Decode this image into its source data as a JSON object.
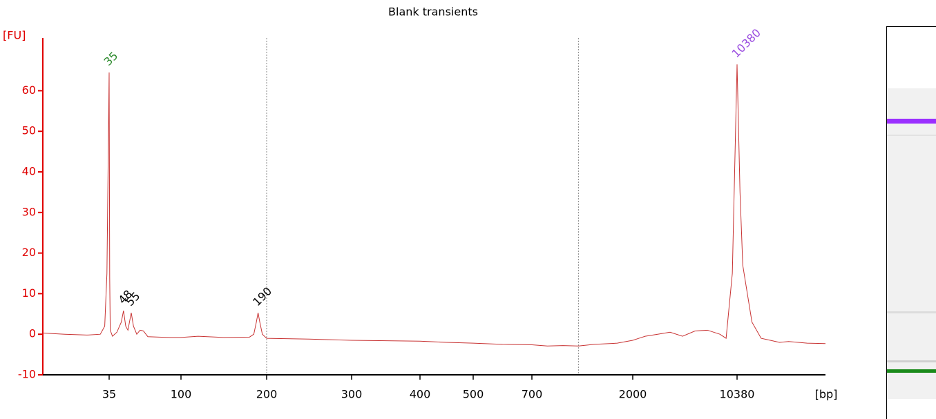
{
  "chart_data": {
    "type": "line",
    "title": "Blank transients",
    "y_label": "[FU]",
    "x_label": "[bp]",
    "axis_color": "#e00000",
    "xlim": [
      20,
      20000
    ],
    "xticks": [
      35,
      100,
      200,
      300,
      400,
      500,
      700,
      2000,
      10380
    ],
    "ylim": [
      -10,
      73
    ],
    "yticks": [
      -10,
      0,
      10,
      20,
      30,
      40,
      50,
      60
    ],
    "vlines": [
      200,
      1300
    ],
    "series": [
      {
        "color": "#c83232",
        "x": [
          20,
          25,
          30,
          33,
          34,
          34.5,
          35,
          35.5,
          36,
          38,
          42,
          46,
          48,
          50,
          52,
          55,
          57,
          60,
          63,
          66,
          70,
          80,
          90,
          100,
          120,
          150,
          180,
          185,
          188,
          190,
          192,
          195,
          200,
          250,
          300,
          350,
          400,
          450,
          500,
          600,
          700,
          900,
          1100,
          1300,
          1500,
          1800,
          2000,
          2500,
          3000,
          4000,
          5000,
          6000,
          7000,
          8000,
          9000,
          9500,
          10000,
          10380,
          10700,
          11000,
          11500,
          12000,
          13000,
          14000,
          15000,
          16000,
          18000,
          20000
        ],
        "values": [
          0.3,
          0,
          -0.2,
          0,
          2,
          15,
          64.5,
          14,
          1,
          -0.5,
          0.5,
          3,
          5.8,
          2,
          1,
          5.3,
          2,
          0,
          1,
          0.8,
          -0.6,
          -0.7,
          -0.8,
          -0.8,
          -0.5,
          -0.8,
          -0.7,
          0,
          3,
          5.3,
          3,
          0,
          -1,
          -1.2,
          -1.5,
          -1.6,
          -1.7,
          -2,
          -2.2,
          -2.5,
          -2.6,
          -2.9,
          -2.8,
          -2.9,
          -2.5,
          -2.2,
          -1.5,
          -1,
          -0.5,
          0,
          0.5,
          -0.5,
          0.8,
          1,
          0,
          -1,
          15,
          66.5,
          35,
          17,
          10,
          3,
          -1,
          -1.5,
          -2,
          -1.8,
          -2.2,
          -2.3
        ]
      }
    ],
    "peaks": [
      {
        "size": 35,
        "fu": 64.5,
        "color": "#2e8b2e"
      },
      {
        "size": 48,
        "fu": 5.8,
        "color": "#000000"
      },
      {
        "size": 55,
        "fu": 5.3,
        "color": "#000000"
      },
      {
        "size": 190,
        "fu": 5.3,
        "color": "#000000"
      },
      {
        "size": 10380,
        "fu": 66.5,
        "color": "#9b4de0"
      }
    ]
  }
}
